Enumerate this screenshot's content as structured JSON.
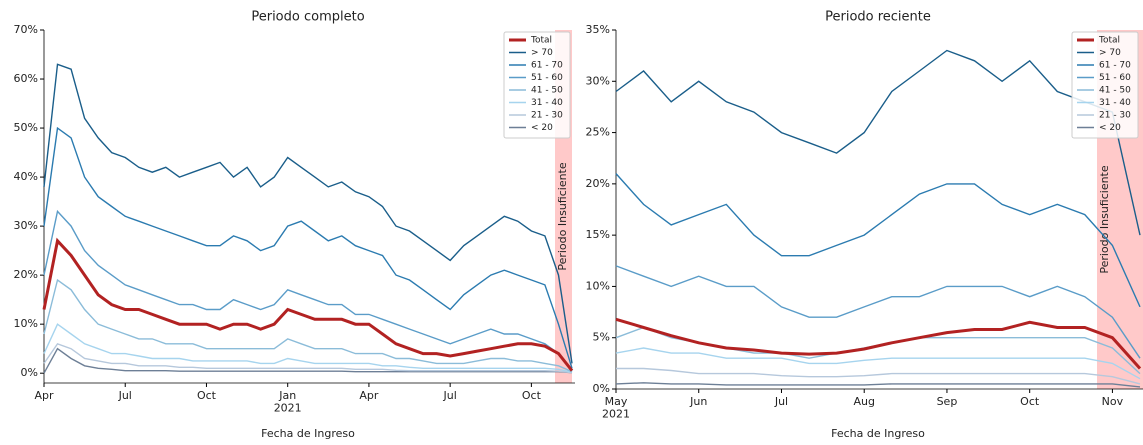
{
  "chart_data": [
    {
      "type": "line",
      "title": "Periodo completo",
      "x_label": "Fecha de Ingreso",
      "annotation": "Periodo Insuficiente",
      "legend": "upper right",
      "categories": [
        "Apr",
        null,
        null,
        null,
        null,
        null,
        "Jul",
        null,
        null,
        null,
        null,
        null,
        "Oct",
        null,
        null,
        null,
        null,
        null,
        "Jan 2021",
        null,
        null,
        null,
        null,
        null,
        "Apr",
        null,
        null,
        null,
        null,
        null,
        "Jul",
        null,
        null,
        null,
        null,
        null,
        "Oct",
        null,
        null,
        null
      ],
      "ylim": [
        -2,
        70
      ],
      "yticks": [
        {
          "value": 0,
          "label": "0%"
        },
        {
          "value": 10,
          "label": "10%"
        },
        {
          "value": 20,
          "label": "20%"
        },
        {
          "value": 30,
          "label": "30%"
        },
        {
          "value": 40,
          "label": "40%"
        },
        {
          "value": 50,
          "label": "50%"
        },
        {
          "value": 60,
          "label": "60%"
        },
        {
          "value": 70,
          "label": "70%"
        }
      ],
      "series": [
        {
          "name": "Total",
          "color": "#b22222",
          "values": [
            13,
            27,
            24,
            20,
            16,
            14,
            13,
            13,
            12,
            11,
            10,
            10,
            10,
            9,
            10,
            10,
            9,
            10,
            13,
            12,
            11,
            11,
            11,
            10,
            10,
            8,
            6,
            5,
            4,
            4,
            3.5,
            4,
            4.5,
            5,
            5.5,
            6,
            6,
            5.5,
            4,
            0.5
          ]
        },
        {
          "name": "> 70",
          "color": "#1a5e8a",
          "values": [
            38,
            63,
            62,
            52,
            48,
            45,
            44,
            42,
            41,
            42,
            40,
            41,
            42,
            43,
            40,
            42,
            38,
            40,
            44,
            42,
            40,
            38,
            39,
            37,
            36,
            34,
            30,
            29,
            27,
            25,
            23,
            26,
            28,
            30,
            32,
            31,
            29,
            28,
            20,
            2
          ]
        },
        {
          "name": "61 - 70",
          "color": "#2b7bb0",
          "values": [
            30,
            50,
            48,
            40,
            36,
            34,
            32,
            31,
            30,
            29,
            28,
            27,
            26,
            26,
            28,
            27,
            25,
            26,
            30,
            31,
            29,
            27,
            28,
            26,
            25,
            24,
            20,
            19,
            17,
            15,
            13,
            16,
            18,
            20,
            21,
            20,
            19,
            18,
            10,
            1
          ]
        },
        {
          "name": "51 - 60",
          "color": "#5a9cc8",
          "values": [
            20,
            33,
            30,
            25,
            22,
            20,
            18,
            17,
            16,
            15,
            14,
            14,
            13,
            13,
            15,
            14,
            13,
            14,
            17,
            16,
            15,
            14,
            14,
            12,
            12,
            11,
            10,
            9,
            8,
            7,
            6,
            7,
            8,
            9,
            8,
            8,
            7,
            6,
            4,
            0.5
          ]
        },
        {
          "name": "41 - 50",
          "color": "#8bbcd9",
          "values": [
            8,
            19,
            17,
            13,
            10,
            9,
            8,
            7,
            7,
            6,
            6,
            6,
            5,
            5,
            5,
            5,
            5,
            5,
            7,
            6,
            5,
            5,
            5,
            4,
            4,
            4,
            3,
            3,
            2.5,
            2,
            2,
            2,
            2.5,
            3,
            3,
            2.5,
            2.5,
            2,
            1.5,
            0.3
          ]
        },
        {
          "name": "31 - 40",
          "color": "#a6d4ee",
          "values": [
            4,
            10,
            8,
            6,
            5,
            4,
            4,
            3.5,
            3,
            3,
            3,
            2.5,
            2.5,
            2.5,
            2.5,
            2.5,
            2,
            2,
            3,
            2.5,
            2,
            2,
            2,
            2,
            2,
            1.5,
            1.5,
            1.2,
            1,
            1,
            1,
            1,
            1,
            1,
            1,
            1,
            1,
            1,
            0.8,
            0.2
          ]
        },
        {
          "name": "21 - 30",
          "color": "#b6c8dc",
          "values": [
            2,
            6,
            5,
            3,
            2.5,
            2,
            2,
            1.5,
            1.5,
            1.5,
            1.2,
            1.2,
            1,
            1,
            1,
            1,
            1,
            1,
            1,
            1,
            1,
            1,
            1,
            0.8,
            0.8,
            0.8,
            0.6,
            0.5,
            0.5,
            0.5,
            0.5,
            0.5,
            0.5,
            0.5,
            0.5,
            0.5,
            0.5,
            0.5,
            0.4,
            0.1
          ]
        },
        {
          "name": "< 20",
          "color": "#6d7f96",
          "values": [
            0,
            5,
            3,
            1.5,
            1,
            0.8,
            0.5,
            0.5,
            0.5,
            0.5,
            0.4,
            0.4,
            0.4,
            0.4,
            0.4,
            0.4,
            0.4,
            0.4,
            0.4,
            0.4,
            0.4,
            0.4,
            0.4,
            0.3,
            0.3,
            0.3,
            0.3,
            0.3,
            0.3,
            0.3,
            0.3,
            0.3,
            0.3,
            0.3,
            0.3,
            0.3,
            0.3,
            0.3,
            0.3,
            0.1
          ]
        }
      ]
    },
    {
      "type": "line",
      "title": "Periodo reciente",
      "x_label": "Fecha de Ingreso",
      "annotation": "Periodo Insuficiente",
      "legend": "upper right",
      "categories": [
        "May 2021",
        null,
        null,
        "Jun",
        null,
        null,
        "Jul",
        null,
        null,
        "Aug",
        null,
        null,
        "Sep",
        null,
        null,
        "Oct",
        null,
        null,
        "Nov",
        null
      ],
      "ylim": [
        0,
        35
      ],
      "yticks": [
        {
          "value": 0,
          "label": "0%"
        },
        {
          "value": 5,
          "label": "5%"
        },
        {
          "value": 10,
          "label": "10%"
        },
        {
          "value": 15,
          "label": "15%"
        },
        {
          "value": 20,
          "label": "20%"
        },
        {
          "value": 25,
          "label": "25%"
        },
        {
          "value": 30,
          "label": "30%"
        },
        {
          "value": 35,
          "label": "35%"
        }
      ],
      "series": [
        {
          "name": "Total",
          "color": "#b22222",
          "values": [
            6.8,
            6,
            5.2,
            4.5,
            4,
            3.8,
            3.5,
            3.4,
            3.5,
            3.9,
            4.5,
            5,
            5.5,
            5.8,
            5.8,
            6.5,
            6,
            6,
            5,
            2
          ]
        },
        {
          "name": "> 70",
          "color": "#1a5e8a",
          "values": [
            29,
            31,
            28,
            30,
            28,
            27,
            25,
            24,
            23,
            25,
            29,
            31,
            33,
            32,
            30,
            32,
            29,
            28,
            27,
            15
          ]
        },
        {
          "name": "61 - 70",
          "color": "#2b7bb0",
          "values": [
            21,
            18,
            16,
            17,
            18,
            15,
            13,
            13,
            14,
            15,
            17,
            19,
            20,
            20,
            18,
            17,
            18,
            17,
            14,
            8
          ]
        },
        {
          "name": "51 - 60",
          "color": "#5a9cc8",
          "values": [
            12,
            11,
            10,
            11,
            10,
            10,
            8,
            7,
            7,
            8,
            9,
            9,
            10,
            10,
            10,
            9,
            10,
            9,
            7,
            3
          ]
        },
        {
          "name": "41 - 50",
          "color": "#8bbcd9",
          "values": [
            5,
            6,
            5,
            4.5,
            4,
            3.5,
            3.5,
            3,
            3.5,
            4,
            4.5,
            5,
            5,
            5,
            5,
            5,
            5,
            5,
            4,
            1.5
          ]
        },
        {
          "name": "31 - 40",
          "color": "#a6d4ee",
          "values": [
            3.5,
            4,
            3.5,
            3.5,
            3,
            3,
            3,
            2.5,
            2.5,
            2.8,
            3,
            3,
            3,
            3,
            3,
            3,
            3,
            3,
            2.5,
            1
          ]
        },
        {
          "name": "21 - 30",
          "color": "#b6c8dc",
          "values": [
            2,
            2,
            1.8,
            1.5,
            1.5,
            1.5,
            1.3,
            1.2,
            1.2,
            1.3,
            1.5,
            1.5,
            1.5,
            1.5,
            1.5,
            1.5,
            1.5,
            1.5,
            1.2,
            0.5
          ]
        },
        {
          "name": "< 20",
          "color": "#6d7f96",
          "values": [
            0.5,
            0.6,
            0.5,
            0.5,
            0.4,
            0.4,
            0.4,
            0.4,
            0.4,
            0.4,
            0.5,
            0.5,
            0.5,
            0.5,
            0.5,
            0.5,
            0.5,
            0.5,
            0.5,
            0.2
          ]
        }
      ]
    }
  ]
}
